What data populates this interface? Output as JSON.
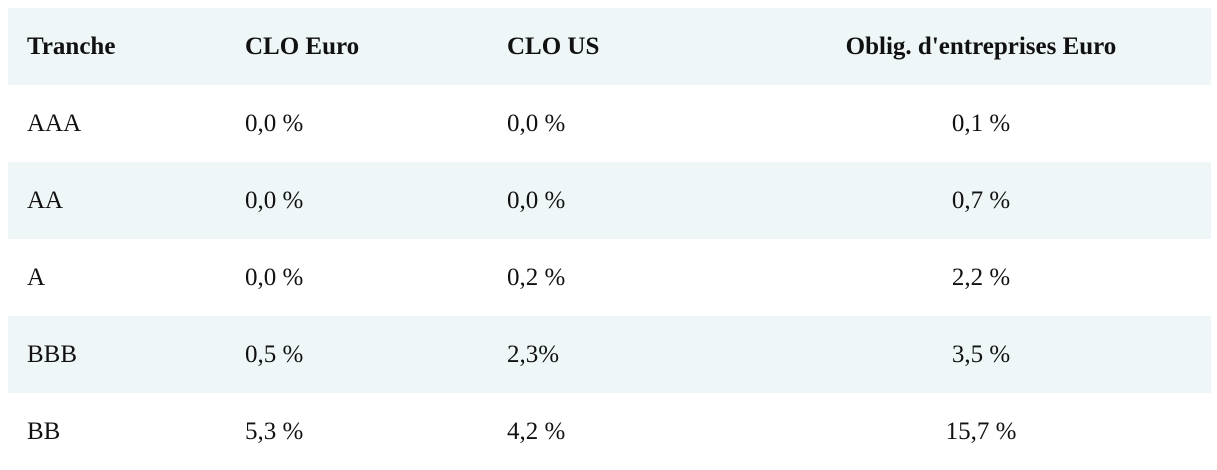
{
  "table": {
    "header": [
      "Tranche",
      "CLO Euro",
      "CLO US",
      "Oblig. d'entreprises Euro"
    ],
    "rows": [
      [
        "AAA",
        "0,0 %",
        "0,0 %",
        "0,1 %"
      ],
      [
        "AA",
        "0,0 %",
        "0,0 %",
        "0,7 %"
      ],
      [
        "A",
        "0,0 %",
        "0,2 %",
        "2,2 %"
      ],
      [
        "BBB",
        "0,5 %",
        "2,3%",
        "3,5 %"
      ],
      [
        "BB",
        "5,3 %",
        "4,2 %",
        "15,7 %"
      ]
    ]
  }
}
